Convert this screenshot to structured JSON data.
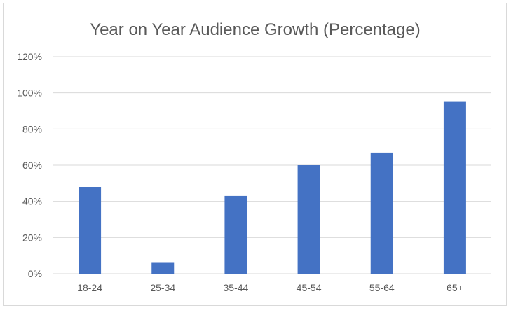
{
  "chart_data": {
    "type": "bar",
    "title": "Year on Year Audience Growth (Percentage)",
    "xlabel": "",
    "ylabel": "",
    "categories": [
      "18-24",
      "25-34",
      "35-44",
      "45-54",
      "55-64",
      "65+"
    ],
    "values": [
      48,
      6,
      43,
      60,
      67,
      95
    ],
    "ylim": [
      0,
      120
    ],
    "y_ticks": [
      0,
      20,
      40,
      60,
      80,
      100,
      120
    ],
    "y_tick_labels": [
      "0%",
      "20%",
      "40%",
      "60%",
      "80%",
      "100%",
      "120%"
    ],
    "grid": true,
    "legend": "none",
    "colors": {
      "bar": "#4472C4",
      "grid": "#d9d9d9",
      "text": "#595959",
      "axis": "#d9d9d9"
    }
  }
}
